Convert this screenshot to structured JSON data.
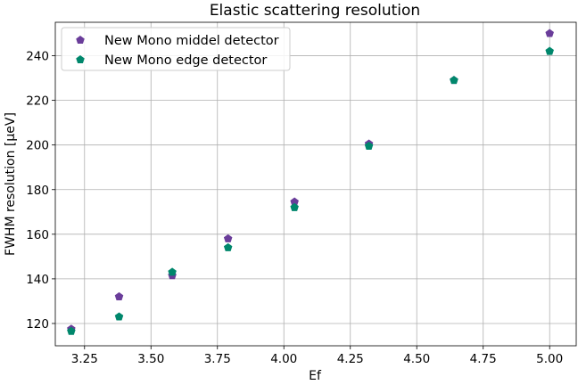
{
  "chart_data": {
    "type": "scatter",
    "title": "Elastic scattering resolution",
    "xlabel": "Ef",
    "ylabel": "FWHM resolution [μeV]",
    "xlim": [
      3.14,
      5.1
    ],
    "ylim": [
      110,
      255
    ],
    "xticks": [
      3.25,
      3.5,
      3.75,
      4.0,
      4.25,
      4.5,
      4.75,
      5.0
    ],
    "xtick_labels": [
      "3.25",
      "3.50",
      "3.75",
      "4.00",
      "4.25",
      "4.50",
      "4.75",
      "5.00"
    ],
    "yticks": [
      120,
      140,
      160,
      180,
      200,
      220,
      240
    ],
    "ytick_labels": [
      "120",
      "140",
      "160",
      "180",
      "200",
      "220",
      "240"
    ],
    "grid": true,
    "legend_position": "top-left",
    "series": [
      {
        "name": "New Mono middel detector",
        "color": "#6a3d9a",
        "marker": "pentagon",
        "points": [
          {
            "x": 3.2,
            "y": 117.5
          },
          {
            "x": 3.38,
            "y": 132
          },
          {
            "x": 3.58,
            "y": 141.5
          },
          {
            "x": 3.79,
            "y": 158
          },
          {
            "x": 4.04,
            "y": 174.5
          },
          {
            "x": 4.32,
            "y": 200.5
          },
          {
            "x": 4.64,
            "y": 229
          },
          {
            "x": 5.0,
            "y": 250
          }
        ]
      },
      {
        "name": "New Mono edge detector",
        "color": "#00876c",
        "marker": "pentagon",
        "points": [
          {
            "x": 3.2,
            "y": 116.5
          },
          {
            "x": 3.38,
            "y": 123
          },
          {
            "x": 3.58,
            "y": 143
          },
          {
            "x": 3.79,
            "y": 154
          },
          {
            "x": 4.04,
            "y": 172
          },
          {
            "x": 4.32,
            "y": 199.5
          },
          {
            "x": 4.64,
            "y": 229
          },
          {
            "x": 5.0,
            "y": 242
          }
        ]
      }
    ]
  }
}
